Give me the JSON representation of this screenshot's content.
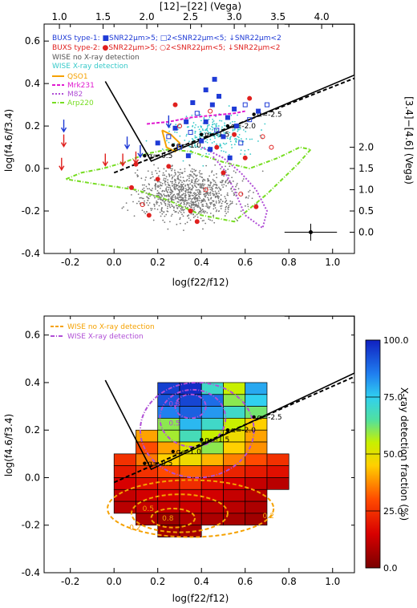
{
  "chart_data": [
    {
      "type": "scatter",
      "top_axis_label": "[12]−[22] (Vega)",
      "top_ticks": [
        "1.0",
        "1.5",
        "2.0",
        "2.5",
        "3.0",
        "3.5",
        "4.0"
      ],
      "right_axis_label": "[3.4]−[4.6] (Vega)",
      "right_ticks": [
        "0.0",
        "0.5",
        "1.0",
        "1.5",
        "2.0"
      ],
      "xlabel": "log(f22/f12)",
      "ylabel": "log(f4.6/f3.4)",
      "xticks": [
        "-0.2",
        "0.0",
        "0.2",
        "0.4",
        "0.6",
        "0.8",
        "1.0"
      ],
      "yticks": [
        "-0.4",
        "-0.2",
        "0.0",
        "0.2",
        "0.4",
        "0.6"
      ],
      "xlim": [
        -0.32,
        1.1
      ],
      "ylim": [
        -0.4,
        0.68
      ],
      "legend_placement": "top-left",
      "legend": [
        {
          "label": "BUXS type-1: ■SNR22μm>5; □2<SNR22μm<5; ↓SNR22μm<2",
          "color": "#1f3bd6"
        },
        {
          "label": "BUXS type-2: ●SNR22μm>5; ○2<SNR22μm<5; ↓SNR22μm<2",
          "color": "#e0201e"
        },
        {
          "label": "WISE no X-ray detection",
          "color": "#777777"
        },
        {
          "label": "WISE X-ray detection",
          "color": "#36c9c9"
        },
        {
          "label": "QSO1",
          "color": "#f5a100"
        },
        {
          "label": "Mrk231",
          "color": "#e01ad0"
        },
        {
          "label": "M82",
          "color": "#b04fd6"
        },
        {
          "label": "Arp220",
          "color": "#77dd22"
        }
      ],
      "alpha_labels": [
        "α=-0.5",
        "α=-1.0",
        "α=-1.5",
        "α=-2.0",
        "α=-2.5"
      ],
      "alpha_points": [
        [
          0.14,
          0.06
        ],
        [
          0.27,
          0.11
        ],
        [
          0.4,
          0.16
        ],
        [
          0.52,
          0.2
        ],
        [
          0.64,
          0.255
        ]
      ],
      "wedge": [
        [
          -0.04,
          0.41
        ],
        [
          0.17,
          0.035
        ],
        [
          1.1,
          0.44
        ],
        [
          1.1,
          0.68
        ],
        [
          0.78,
          0.68
        ]
      ],
      "powerlaw": {
        "x": [
          0.0,
          1.1
        ],
        "y": [
          -0.02,
          0.425
        ]
      },
      "error_bar": {
        "x": 0.9,
        "y": -0.3,
        "xerr": 0.12,
        "yerr": 0.04
      },
      "series": [
        {
          "name": "BUXS type-1",
          "color": "#1f3bd6",
          "points": [
            [
              0.38,
              0.26
            ],
            [
              0.42,
              0.22
            ],
            [
              0.45,
              0.3
            ],
            [
              0.47,
              0.18
            ],
            [
              0.52,
              0.24
            ],
            [
              0.55,
              0.28
            ],
            [
              0.35,
              0.17
            ],
            [
              0.4,
              0.13
            ],
            [
              0.48,
              0.34
            ],
            [
              0.6,
              0.3
            ],
            [
              0.33,
              0.22
            ],
            [
              0.56,
              0.2
            ],
            [
              0.3,
              0.1
            ],
            [
              0.44,
              0.09
            ],
            [
              0.5,
              0.15
            ],
            [
              0.62,
              0.23
            ],
            [
              0.28,
              0.19
            ],
            [
              0.36,
              0.31
            ],
            [
              0.58,
              0.12
            ],
            [
              0.66,
              0.27
            ],
            [
              0.42,
              0.37
            ],
            [
              0.25,
              0.15
            ],
            [
              0.53,
              0.05
            ],
            [
              0.34,
              0.06
            ],
            [
              0.7,
              0.3
            ],
            [
              0.2,
              0.12
            ],
            [
              0.46,
              0.42
            ]
          ]
        },
        {
          "name": "BUXS type-2",
          "color": "#e0201e",
          "points": [
            [
              0.3,
              0.2
            ],
            [
              0.55,
              0.16
            ],
            [
              0.6,
              0.05
            ],
            [
              0.42,
              -0.1
            ],
            [
              0.2,
              -0.05
            ],
            [
              0.65,
              -0.18
            ],
            [
              0.13,
              -0.17
            ],
            [
              0.35,
              -0.2
            ],
            [
              0.5,
              -0.02
            ],
            [
              0.72,
              0.1
            ],
            [
              0.25,
              0.01
            ],
            [
              0.47,
              0.1
            ],
            [
              0.68,
              0.15
            ],
            [
              0.1,
              0.02
            ],
            [
              0.38,
              -0.25
            ],
            [
              0.58,
              -0.12
            ],
            [
              0.16,
              -0.22
            ],
            [
              0.28,
              0.3
            ],
            [
              0.44,
              0.27
            ],
            [
              0.62,
              0.33
            ],
            [
              0.08,
              -0.09
            ]
          ]
        },
        {
          "name": "BUXS type-1 upper limits",
          "color": "#1f3bd6",
          "points": [
            [
              -0.23,
              0.2
            ],
            [
              0.06,
              0.12
            ],
            [
              0.12,
              0.08
            ],
            [
              0.25,
              0.22
            ]
          ]
        },
        {
          "name": "BUXS type-2 upper limits",
          "color": "#e0201e",
          "points": [
            [
              -0.23,
              0.13
            ],
            [
              -0.24,
              0.02
            ],
            [
              -0.04,
              0.04
            ],
            [
              0.04,
              0.04
            ],
            [
              0.1,
              0.05
            ]
          ]
        }
      ]
    },
    {
      "type": "heatmap",
      "xlabel": "log(f22/f12)",
      "ylabel": "log(f4.6/f3.4)",
      "xticks": [
        "-0.2",
        "0.0",
        "0.2",
        "0.4",
        "0.6",
        "0.8",
        "1.0"
      ],
      "yticks": [
        "-0.4",
        "-0.2",
        "0.0",
        "0.2",
        "0.4",
        "0.6"
      ],
      "xlim": [
        -0.32,
        1.1
      ],
      "ylim": [
        -0.4,
        0.68
      ],
      "colorbar_label": "X-ray detection fraction (%)",
      "colorbar_ticks": [
        "0.0",
        "25.0",
        "50.0",
        "75.0",
        "100.0"
      ],
      "colorbar_range": [
        0,
        100
      ],
      "legend": [
        {
          "label": "WISE no X-ray detection",
          "color": "#f5a100"
        },
        {
          "label": "WISE X-ray detection",
          "color": "#b04fd6"
        }
      ],
      "contour_labels": [
        "0.2",
        "0.5",
        "0.8",
        "0.2",
        "0.5",
        "0.8"
      ],
      "alpha_labels": [
        "α=-0.5",
        "α=-1.0",
        "α=-1.5",
        "α=-2.0",
        "α=-2.5"
      ],
      "alpha_points": [
        [
          0.14,
          0.06
        ],
        [
          0.27,
          0.11
        ],
        [
          0.4,
          0.16
        ],
        [
          0.52,
          0.2
        ],
        [
          0.64,
          0.255
        ]
      ],
      "wedge": [
        [
          -0.04,
          0.41
        ],
        [
          0.17,
          0.035
        ],
        [
          1.1,
          0.44
        ],
        [
          1.1,
          0.68
        ],
        [
          0.78,
          0.68
        ]
      ],
      "powerlaw": {
        "x": [
          0.0,
          1.1
        ],
        "y": [
          -0.02,
          0.425
        ]
      },
      "cell_size": [
        0.1,
        0.05
      ],
      "cells": [
        [
          0.2,
          0.35,
          95
        ],
        [
          0.3,
          0.35,
          98
        ],
        [
          0.4,
          0.35,
          70
        ],
        [
          0.5,
          0.35,
          55
        ],
        [
          0.6,
          0.35,
          80
        ],
        [
          0.2,
          0.3,
          92
        ],
        [
          0.3,
          0.3,
          94
        ],
        [
          0.4,
          0.3,
          88
        ],
        [
          0.5,
          0.3,
          60
        ],
        [
          0.6,
          0.3,
          75
        ],
        [
          0.2,
          0.25,
          85
        ],
        [
          0.3,
          0.25,
          90
        ],
        [
          0.4,
          0.25,
          82
        ],
        [
          0.5,
          0.25,
          70
        ],
        [
          0.6,
          0.25,
          62
        ],
        [
          0.2,
          0.2,
          60
        ],
        [
          0.3,
          0.2,
          78
        ],
        [
          0.4,
          0.2,
          70
        ],
        [
          0.5,
          0.2,
          55
        ],
        [
          0.6,
          0.2,
          45
        ],
        [
          0.1,
          0.15,
          40
        ],
        [
          0.2,
          0.15,
          58
        ],
        [
          0.3,
          0.15,
          68
        ],
        [
          0.4,
          0.15,
          55
        ],
        [
          0.5,
          0.15,
          48
        ],
        [
          0.6,
          0.15,
          40
        ],
        [
          0.1,
          0.1,
          30
        ],
        [
          0.2,
          0.1,
          40
        ],
        [
          0.3,
          0.1,
          52
        ],
        [
          0.4,
          0.1,
          60
        ],
        [
          0.5,
          0.1,
          45
        ],
        [
          0.6,
          0.1,
          38
        ],
        [
          0.0,
          0.05,
          25
        ],
        [
          0.1,
          0.05,
          35
        ],
        [
          0.2,
          0.05,
          45
        ],
        [
          0.3,
          0.05,
          48
        ],
        [
          0.4,
          0.05,
          42
        ],
        [
          0.5,
          0.05,
          36
        ],
        [
          0.6,
          0.05,
          30
        ],
        [
          0.7,
          0.05,
          25
        ],
        [
          0.0,
          0.0,
          20
        ],
        [
          0.1,
          0.0,
          25
        ],
        [
          0.2,
          0.0,
          30
        ],
        [
          0.3,
          0.0,
          33
        ],
        [
          0.4,
          0.0,
          28
        ],
        [
          0.5,
          0.0,
          22
        ],
        [
          0.6,
          0.0,
          20
        ],
        [
          0.7,
          0.0,
          18
        ],
        [
          0.0,
          -0.05,
          15
        ],
        [
          0.1,
          -0.05,
          18
        ],
        [
          0.2,
          -0.05,
          20
        ],
        [
          0.3,
          -0.05,
          24
        ],
        [
          0.4,
          -0.05,
          18
        ],
        [
          0.5,
          -0.05,
          15
        ],
        [
          0.6,
          -0.05,
          12
        ],
        [
          0.7,
          -0.05,
          10
        ],
        [
          0.0,
          -0.1,
          12
        ],
        [
          0.1,
          -0.1,
          14
        ],
        [
          0.2,
          -0.1,
          15
        ],
        [
          0.3,
          -0.1,
          16
        ],
        [
          0.4,
          -0.1,
          14
        ],
        [
          0.5,
          -0.1,
          12
        ],
        [
          0.6,
          -0.1,
          10
        ],
        [
          0.0,
          -0.15,
          10
        ],
        [
          0.1,
          -0.15,
          12
        ],
        [
          0.2,
          -0.15,
          12
        ],
        [
          0.3,
          -0.15,
          13
        ],
        [
          0.4,
          -0.15,
          11
        ],
        [
          0.5,
          -0.15,
          10
        ],
        [
          0.6,
          -0.15,
          8
        ],
        [
          0.1,
          -0.2,
          8
        ],
        [
          0.2,
          -0.2,
          5
        ],
        [
          0.3,
          -0.2,
          9
        ],
        [
          0.4,
          -0.2,
          8
        ],
        [
          0.5,
          -0.2,
          7
        ],
        [
          0.6,
          -0.2,
          6
        ],
        [
          0.2,
          -0.25,
          6
        ],
        [
          0.3,
          -0.25,
          7
        ]
      ]
    }
  ]
}
